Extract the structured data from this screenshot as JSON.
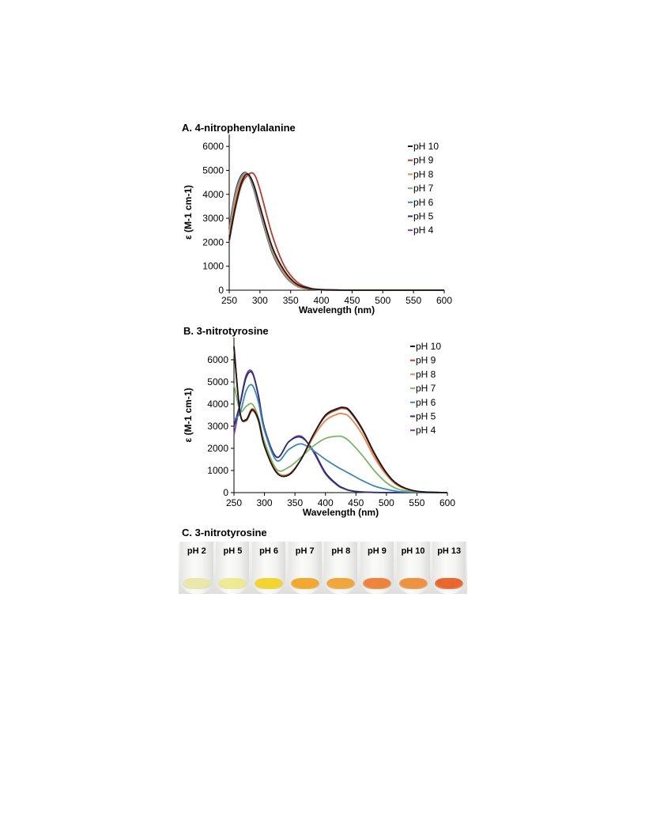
{
  "chart_data": [
    {
      "type": "line",
      "title": "A. 4-nitrophenylalanine",
      "xlabel": "Wavelength (nm)",
      "ylabel": "ε (M-1 cm-1)",
      "xlim": [
        250,
        600
      ],
      "ylim": [
        0,
        6500
      ],
      "xticks": [
        250,
        300,
        350,
        400,
        450,
        500,
        550,
        600
      ],
      "yticks": [
        0,
        1000,
        2000,
        3000,
        4000,
        5000,
        6000
      ],
      "legend_position": "top-right",
      "series": [
        {
          "name": "pH 10",
          "color": "#1a1a1a",
          "x": [
            250,
            260,
            270,
            280,
            290,
            300,
            320,
            340,
            360,
            380,
            400,
            450,
            500,
            550,
            600
          ],
          "y": [
            2100,
            3500,
            4500,
            4850,
            4400,
            3500,
            1800,
            800,
            250,
            80,
            20,
            0,
            0,
            0,
            0
          ]
        },
        {
          "name": "pH 9",
          "color": "#c0392b",
          "x": [
            250,
            260,
            270,
            280,
            290,
            300,
            320,
            340,
            360,
            380,
            400,
            450,
            500,
            550,
            600
          ],
          "y": [
            2050,
            3400,
            4400,
            4800,
            4850,
            4200,
            2300,
            1000,
            350,
            100,
            30,
            0,
            0,
            0,
            0
          ]
        },
        {
          "name": "pH 8",
          "color": "#e8874a",
          "x": [
            250,
            260,
            270,
            280,
            290,
            300,
            320,
            340,
            360,
            380,
            400,
            450,
            500,
            550,
            600
          ],
          "y": [
            2300,
            3800,
            4650,
            4850,
            4350,
            3400,
            1700,
            700,
            200,
            60,
            20,
            0,
            0,
            0,
            0
          ]
        },
        {
          "name": "pH 7",
          "color": "#7bb662",
          "x": [
            250,
            260,
            270,
            280,
            290,
            300,
            320,
            340,
            360,
            380,
            400,
            450,
            500,
            550,
            600
          ],
          "y": [
            2400,
            3900,
            4700,
            4850,
            4300,
            3350,
            1650,
            680,
            190,
            60,
            20,
            0,
            0,
            0,
            0
          ]
        },
        {
          "name": "pH 6",
          "color": "#3a87c7",
          "x": [
            250,
            260,
            270,
            280,
            290,
            300,
            320,
            340,
            360,
            380,
            400,
            450,
            500,
            550,
            600
          ],
          "y": [
            2500,
            4000,
            4750,
            4850,
            4250,
            3300,
            1600,
            650,
            180,
            55,
            15,
            0,
            0,
            0,
            0
          ]
        },
        {
          "name": "pH 5",
          "color": "#2b2f7a",
          "x": [
            250,
            260,
            270,
            280,
            290,
            300,
            320,
            340,
            360,
            380,
            400,
            450,
            500,
            550,
            600
          ],
          "y": [
            2550,
            4050,
            4800,
            4850,
            4250,
            3300,
            1600,
            650,
            180,
            55,
            15,
            0,
            0,
            0,
            0
          ]
        },
        {
          "name": "pH 4",
          "color": "#7b3fa6",
          "x": [
            250,
            260,
            270,
            280,
            290,
            300,
            320,
            340,
            360,
            380,
            400,
            450,
            500,
            550,
            600
          ],
          "y": [
            2600,
            4100,
            4800,
            4850,
            4200,
            3250,
            1550,
            620,
            170,
            50,
            15,
            0,
            0,
            0,
            0
          ]
        }
      ]
    },
    {
      "type": "line",
      "title": "B. 3-nitrotyrosine",
      "xlabel": "Wavelength (nm)",
      "ylabel": "ε (M-1 cm-1)",
      "xlim": [
        250,
        600
      ],
      "ylim": [
        0,
        7000
      ],
      "xticks": [
        250,
        300,
        350,
        400,
        450,
        500,
        550,
        600
      ],
      "yticks": [
        0,
        1000,
        2000,
        3000,
        4000,
        5000,
        6000
      ],
      "legend_position": "top-right",
      "series": [
        {
          "name": "pH 10",
          "color": "#1a1a1a",
          "x": [
            250,
            260,
            270,
            280,
            290,
            300,
            320,
            340,
            360,
            380,
            400,
            420,
            430,
            440,
            460,
            480,
            500,
            520,
            550,
            600
          ],
          "y": [
            6600,
            3600,
            3300,
            3750,
            3300,
            2100,
            900,
            800,
            1500,
            2600,
            3500,
            3800,
            3850,
            3700,
            2900,
            1800,
            900,
            350,
            60,
            0
          ]
        },
        {
          "name": "pH 9",
          "color": "#c0392b",
          "x": [
            250,
            260,
            270,
            280,
            290,
            300,
            320,
            340,
            360,
            380,
            400,
            420,
            430,
            440,
            460,
            480,
            500,
            520,
            550,
            600
          ],
          "y": [
            6600,
            3600,
            3250,
            3700,
            3250,
            2100,
            900,
            800,
            1500,
            2600,
            3450,
            3750,
            3800,
            3650,
            2850,
            1750,
            870,
            330,
            55,
            0
          ]
        },
        {
          "name": "pH 8",
          "color": "#e8874a",
          "x": [
            250,
            260,
            270,
            280,
            290,
            300,
            320,
            340,
            360,
            380,
            400,
            420,
            430,
            440,
            460,
            480,
            500,
            520,
            550,
            600
          ],
          "y": [
            6500,
            3600,
            3300,
            3800,
            3300,
            2150,
            950,
            850,
            1500,
            2500,
            3250,
            3550,
            3550,
            3400,
            2650,
            1600,
            800,
            300,
            50,
            0
          ]
        },
        {
          "name": "pH 7",
          "color": "#7bb662",
          "x": [
            250,
            260,
            270,
            280,
            290,
            300,
            320,
            340,
            360,
            380,
            400,
            420,
            430,
            440,
            460,
            480,
            500,
            520,
            550,
            600
          ],
          "y": [
            4900,
            3700,
            3900,
            4000,
            3400,
            2300,
            1050,
            1150,
            1600,
            2100,
            2450,
            2550,
            2500,
            2300,
            1700,
            1000,
            450,
            150,
            30,
            0
          ]
        },
        {
          "name": "pH 6",
          "color": "#3a87c7",
          "x": [
            250,
            260,
            270,
            280,
            290,
            300,
            320,
            340,
            360,
            380,
            400,
            420,
            430,
            440,
            460,
            480,
            500,
            520,
            550,
            600
          ],
          "y": [
            3300,
            3600,
            4600,
            4850,
            4100,
            2800,
            1450,
            1950,
            2200,
            1900,
            1500,
            1150,
            1000,
            850,
            550,
            300,
            150,
            50,
            10,
            0
          ]
        },
        {
          "name": "pH 5",
          "color": "#2b2f7a",
          "x": [
            250,
            260,
            270,
            280,
            290,
            300,
            320,
            340,
            360,
            380,
            400,
            420,
            430,
            440,
            460,
            480,
            500,
            520,
            550,
            600
          ],
          "y": [
            3000,
            4000,
            5200,
            5400,
            4400,
            2900,
            1600,
            2300,
            2500,
            1900,
            900,
            350,
            200,
            100,
            30,
            10,
            0,
            0,
            0,
            0
          ]
        },
        {
          "name": "pH 4",
          "color": "#7b3fa6",
          "x": [
            250,
            260,
            270,
            280,
            290,
            300,
            320,
            340,
            360,
            380,
            400,
            420,
            430,
            440,
            460,
            480,
            500,
            520,
            550,
            600
          ],
          "y": [
            2600,
            4000,
            5300,
            5450,
            4400,
            2900,
            1600,
            2300,
            2550,
            1850,
            850,
            320,
            180,
            90,
            25,
            10,
            0,
            0,
            0,
            0
          ]
        }
      ]
    }
  ],
  "photo": {
    "title": "C. 3-nitrotyrosine",
    "tubes": [
      {
        "label": "pH 2",
        "color": "#e8e7a6"
      },
      {
        "label": "pH 5",
        "color": "#ecea8a"
      },
      {
        "label": "pH 6",
        "color": "#f2d21c"
      },
      {
        "label": "pH 7",
        "color": "#f2a21e"
      },
      {
        "label": "pH 8",
        "color": "#f0a02a"
      },
      {
        "label": "pH 9",
        "color": "#ee7a2a"
      },
      {
        "label": "pH 10",
        "color": "#ef8a30"
      },
      {
        "label": "pH 13",
        "color": "#ea5a1c"
      }
    ]
  }
}
